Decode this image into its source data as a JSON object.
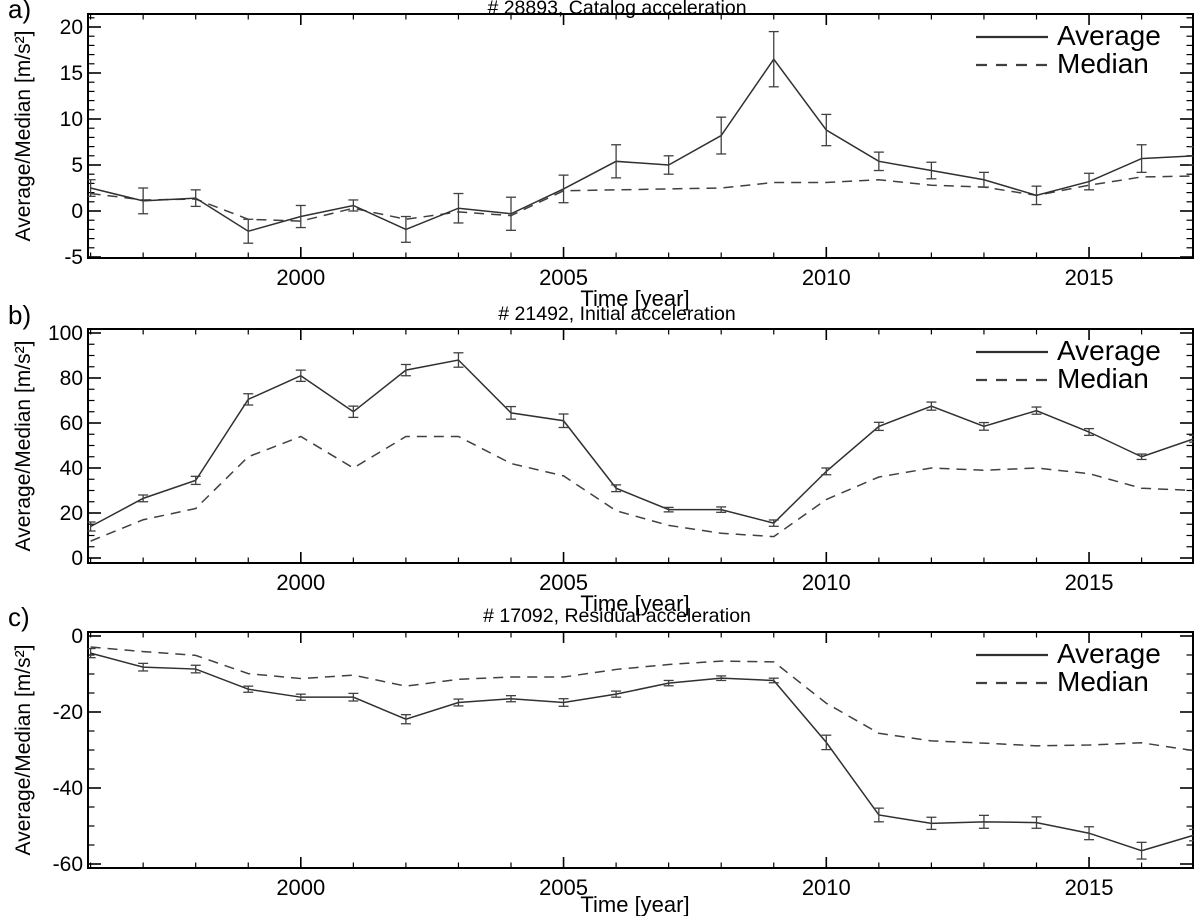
{
  "figure": {
    "background": "#ffffff",
    "axis_color": "#000000",
    "average_color": "#303030",
    "median_color": "#404040",
    "error_bar_color": "#404040"
  },
  "chart_data": [
    {
      "type": "line",
      "panel_label": "a)",
      "title": "# 28893, Catalog acceleration",
      "xlabel": "Time [year]",
      "ylabel": "Average/Median [m/s²]",
      "legend_position": "top-right",
      "grid": false,
      "xlim": [
        1996,
        2017
      ],
      "ylim": [
        -5,
        20
      ],
      "xticks": [
        2000,
        2005,
        2010,
        2015
      ],
      "yticks": [
        20,
        15,
        10,
        5,
        0,
        -5
      ],
      "x": [
        1996,
        1997,
        1998,
        1999,
        2000,
        2001,
        2002,
        2003,
        2004,
        2005,
        2006,
        2007,
        2008,
        2009,
        2010,
        2011,
        2012,
        2013,
        2014,
        2015,
        2016,
        2017
      ],
      "series": [
        {
          "name": "Average",
          "style": "solid",
          "values": [
            2.5,
            1.1,
            1.4,
            -2.2,
            -0.6,
            0.6,
            -2.0,
            0.3,
            -0.3,
            2.4,
            5.4,
            5.0,
            8.2,
            16.5,
            8.8,
            5.4,
            4.4,
            3.4,
            1.7,
            3.2,
            5.7,
            6.0
          ],
          "errors": [
            0.9,
            1.4,
            0.9,
            1.3,
            1.2,
            0.6,
            1.4,
            1.6,
            1.8,
            1.5,
            1.8,
            1.0,
            2.0,
            3.0,
            1.7,
            1.0,
            0.9,
            0.8,
            1.0,
            0.9,
            1.5,
            1.0
          ]
        },
        {
          "name": "Median",
          "style": "dashed",
          "values": [
            1.9,
            1.2,
            1.3,
            -0.9,
            -1.1,
            0.3,
            -0.9,
            -0.1,
            -0.5,
            2.2,
            2.3,
            2.4,
            2.5,
            3.1,
            3.1,
            3.4,
            2.8,
            2.6,
            1.7,
            2.8,
            3.7,
            3.8
          ]
        }
      ]
    },
    {
      "type": "line",
      "panel_label": "b)",
      "title": "# 21492, Initial acceleration",
      "xlabel": "Time [year]",
      "ylabel": "Average/Median [m/s²]",
      "legend_position": "top-right",
      "grid": false,
      "xlim": [
        1996,
        2017
      ],
      "ylim": [
        0,
        100
      ],
      "xticks": [
        2000,
        2005,
        2010,
        2015
      ],
      "yticks": [
        100,
        80,
        60,
        40,
        20,
        0
      ],
      "x": [
        1996,
        1997,
        1998,
        1999,
        2000,
        2001,
        2002,
        2003,
        2004,
        2005,
        2006,
        2007,
        2008,
        2009,
        2010,
        2011,
        2012,
        2013,
        2014,
        2015,
        2016,
        2017
      ],
      "series": [
        {
          "name": "Average",
          "style": "solid",
          "values": [
            14,
            26.5,
            34.5,
            70.5,
            81,
            65,
            83.5,
            88,
            64.5,
            61,
            31,
            21.5,
            21.5,
            15.5,
            38.5,
            58.5,
            67.5,
            58.5,
            65.5,
            56,
            45,
            53
          ],
          "errors": [
            2.0,
            1.5,
            1.8,
            2.5,
            2.5,
            2.5,
            2.5,
            3.2,
            2.8,
            3.0,
            1.5,
            1.0,
            1.2,
            1.4,
            1.5,
            1.8,
            1.8,
            1.7,
            1.6,
            1.5,
            1.2,
            1.5
          ]
        },
        {
          "name": "Median",
          "style": "dashed",
          "values": [
            7.5,
            17,
            22,
            45,
            54,
            40,
            54,
            54,
            42,
            36.5,
            21,
            14.5,
            11,
            9.5,
            26,
            36,
            40,
            39,
            40,
            37.5,
            31,
            30
          ]
        }
      ]
    },
    {
      "type": "line",
      "panel_label": "c)",
      "title": "# 17092, Residual acceleration",
      "xlabel": "Time [year]",
      "ylabel": "Average/Median [m/s²]",
      "legend_position": "top-right",
      "grid": false,
      "xlim": [
        1996,
        2017
      ],
      "ylim": [
        -60,
        0
      ],
      "xticks": [
        2000,
        2005,
        2010,
        2015
      ],
      "yticks": [
        0,
        -20,
        -40,
        -60
      ],
      "x": [
        1996,
        1997,
        1998,
        1999,
        2000,
        2001,
        2002,
        2003,
        2004,
        2005,
        2006,
        2007,
        2008,
        2009,
        2010,
        2011,
        2012,
        2013,
        2014,
        2015,
        2016,
        2017
      ],
      "series": [
        {
          "name": "Average",
          "style": "solid",
          "values": [
            -4.5,
            -8.2,
            -8.7,
            -14.0,
            -16.1,
            -16.1,
            -21.9,
            -17.5,
            -16.5,
            -17.5,
            -15.3,
            -12.4,
            -11.1,
            -11.7,
            -28.0,
            -47.1,
            -49.3,
            -48.9,
            -49.1,
            -51.9,
            -56.5,
            -52.4
          ],
          "errors": [
            1.2,
            1.0,
            1.0,
            0.8,
            0.8,
            1.0,
            1.2,
            0.9,
            0.8,
            1.0,
            0.8,
            0.7,
            0.6,
            0.6,
            1.9,
            1.8,
            1.6,
            1.7,
            1.5,
            1.7,
            2.2,
            1.5
          ]
        },
        {
          "name": "Median",
          "style": "dashed",
          "values": [
            -2.9,
            -4.1,
            -5.1,
            -9.9,
            -11.2,
            -10.3,
            -13.2,
            -11.4,
            -10.8,
            -10.8,
            -8.8,
            -7.5,
            -6.6,
            -6.8,
            -17.7,
            -25.6,
            -27.6,
            -28.2,
            -28.9,
            -28.7,
            -28.1,
            -30.2
          ]
        }
      ]
    }
  ]
}
